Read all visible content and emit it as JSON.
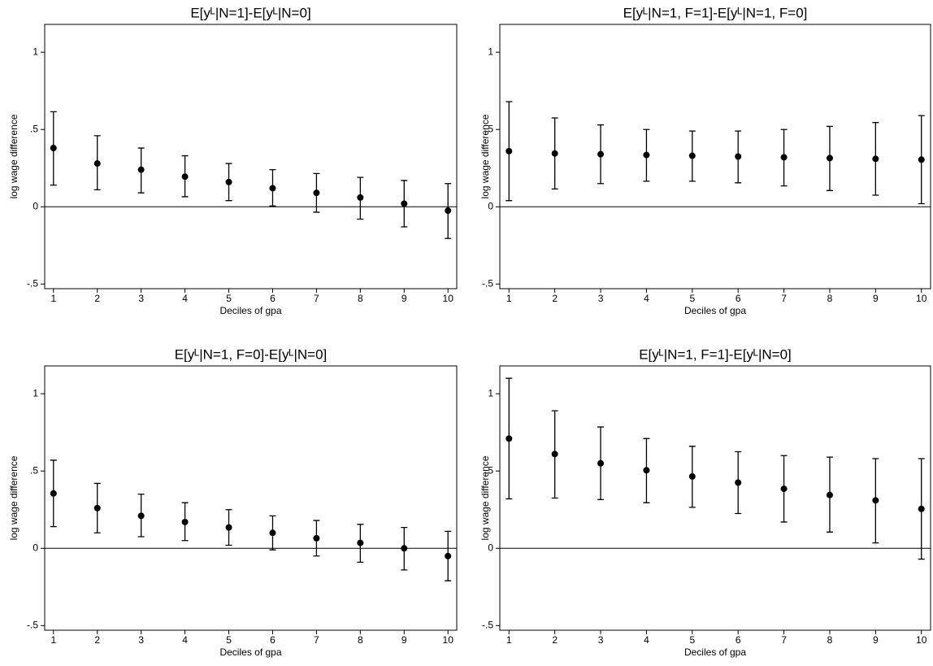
{
  "chart_data": [
    {
      "type": "errorbar",
      "title": "E[yᴸ|N=1]-E[yᴸ|N=0]",
      "xlabel": "Deciles of gpa",
      "ylabel": "log wage difference",
      "x": [
        1,
        2,
        3,
        4,
        5,
        6,
        7,
        8,
        9,
        10
      ],
      "values": [
        0.38,
        0.28,
        0.24,
        0.195,
        0.16,
        0.12,
        0.09,
        0.06,
        0.02,
        -0.025
      ],
      "upper": [
        0.615,
        0.46,
        0.38,
        0.33,
        0.28,
        0.24,
        0.215,
        0.19,
        0.17,
        0.15
      ],
      "lower": [
        0.14,
        0.11,
        0.09,
        0.065,
        0.04,
        0.005,
        -0.035,
        -0.08,
        -0.13,
        -0.205
      ],
      "color": "#000000",
      "reference_line": 0,
      "xlim": [
        0.8,
        10.2
      ],
      "ylim": [
        -0.53,
        1.18
      ],
      "xticks": [
        1,
        2,
        3,
        4,
        5,
        6,
        7,
        8,
        9,
        10
      ],
      "yticks": [
        {
          "value": -0.5,
          "label": "-.5"
        },
        0,
        {
          "value": 0.5,
          "label": ".5"
        },
        1
      ]
    },
    {
      "type": "errorbar",
      "title": "E[yᴸ|N=1, F=1]-E[yᴸ|N=1, F=0]",
      "xlabel": "Deciles of gpa",
      "ylabel": "log wage difference",
      "x": [
        1,
        2,
        3,
        4,
        5,
        6,
        7,
        8,
        9,
        10
      ],
      "values": [
        0.36,
        0.345,
        0.34,
        0.335,
        0.33,
        0.325,
        0.32,
        0.315,
        0.31,
        0.305
      ],
      "upper": [
        0.68,
        0.575,
        0.53,
        0.5,
        0.49,
        0.49,
        0.5,
        0.52,
        0.545,
        0.59
      ],
      "lower": [
        0.04,
        0.115,
        0.15,
        0.165,
        0.165,
        0.155,
        0.135,
        0.105,
        0.075,
        0.02
      ],
      "color": "#000000",
      "reference_line": 0,
      "xlim": [
        0.8,
        10.2
      ],
      "ylim": [
        -0.53,
        1.18
      ],
      "xticks": [
        1,
        2,
        3,
        4,
        5,
        6,
        7,
        8,
        9,
        10
      ],
      "yticks": [
        {
          "value": -0.5,
          "label": "-.5"
        },
        0,
        {
          "value": 0.5,
          "label": ".5"
        },
        1
      ]
    },
    {
      "type": "errorbar",
      "title": "E[yᴸ|N=1, F=0]-E[yᴸ|N=0]",
      "xlabel": "Deciles of gpa",
      "ylabel": "log wage difference",
      "x": [
        1,
        2,
        3,
        4,
        5,
        6,
        7,
        8,
        9,
        10
      ],
      "values": [
        0.355,
        0.26,
        0.21,
        0.17,
        0.135,
        0.1,
        0.065,
        0.035,
        0.0,
        -0.05
      ],
      "upper": [
        0.57,
        0.42,
        0.35,
        0.295,
        0.25,
        0.21,
        0.18,
        0.155,
        0.135,
        0.11
      ],
      "lower": [
        0.14,
        0.1,
        0.075,
        0.05,
        0.02,
        -0.01,
        -0.05,
        -0.09,
        -0.14,
        -0.21
      ],
      "color": "#000000",
      "reference_line": 0,
      "xlim": [
        0.8,
        10.2
      ],
      "ylim": [
        -0.53,
        1.18
      ],
      "xticks": [
        1,
        2,
        3,
        4,
        5,
        6,
        7,
        8,
        9,
        10
      ],
      "yticks": [
        {
          "value": -0.5,
          "label": "-.5"
        },
        0,
        {
          "value": 0.5,
          "label": ".5"
        },
        1
      ]
    },
    {
      "type": "errorbar",
      "title": "E[yᴸ|N=1, F=1]-E[yᴸ|N=0]",
      "xlabel": "Deciles of gpa",
      "ylabel": "log wage difference",
      "x": [
        1,
        2,
        3,
        4,
        5,
        6,
        7,
        8,
        9,
        10
      ],
      "values": [
        0.71,
        0.61,
        0.55,
        0.505,
        0.465,
        0.425,
        0.385,
        0.345,
        0.31,
        0.255
      ],
      "upper": [
        1.1,
        0.89,
        0.785,
        0.71,
        0.66,
        0.625,
        0.6,
        0.59,
        0.58,
        0.58
      ],
      "lower": [
        0.32,
        0.325,
        0.315,
        0.295,
        0.265,
        0.225,
        0.17,
        0.105,
        0.035,
        -0.07
      ],
      "color": "#000000",
      "reference_line": 0,
      "xlim": [
        0.8,
        10.2
      ],
      "ylim": [
        -0.53,
        1.18
      ],
      "xticks": [
        1,
        2,
        3,
        4,
        5,
        6,
        7,
        8,
        9,
        10
      ],
      "yticks": [
        {
          "value": -0.5,
          "label": "-.5"
        },
        0,
        {
          "value": 0.5,
          "label": ".5"
        },
        1
      ]
    }
  ]
}
